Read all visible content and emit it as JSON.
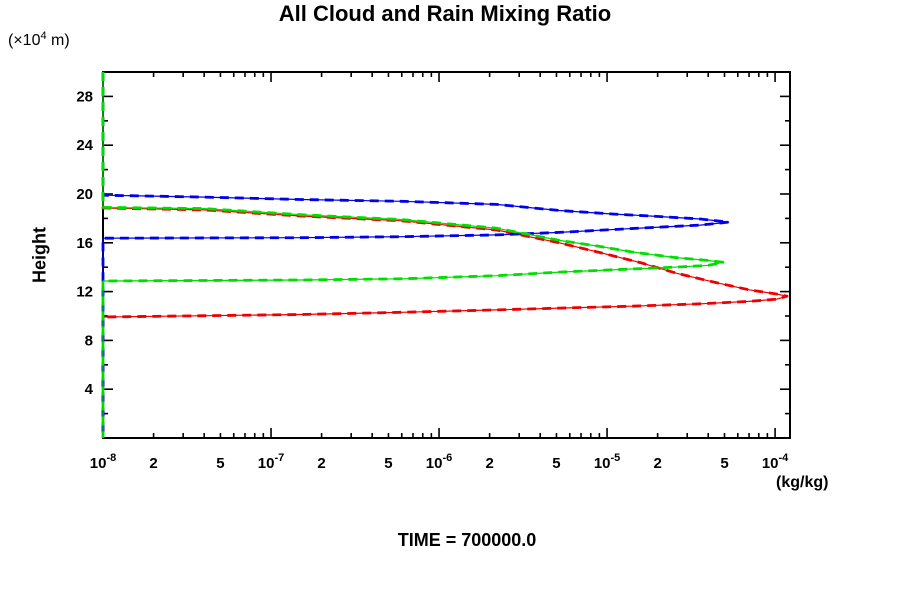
{
  "chart": {
    "title": "All Cloud and Rain Mixing Ratio",
    "y_axis_unit": {
      "prefix": "(×10",
      "sup": "4",
      "suffix": " m)"
    },
    "ylabel": "Height",
    "x_axis_unit": "(kg/kg)",
    "caption": "TIME = 700000.0"
  },
  "chart_data": {
    "type": "line",
    "title": "All Cloud and Rain Mixing Ratio",
    "xlabel": "(kg/kg)",
    "ylabel": "Height (×10^4 m)",
    "caption": "TIME = 700000.0",
    "x_scale": "log",
    "xlim": [
      1e-08,
      0.0001227
    ],
    "ylim": [
      0,
      30
    ],
    "grid": false,
    "legend": "none",
    "x_major_ticks": [
      1e-08,
      1e-07,
      1e-06,
      1e-05,
      0.0001
    ],
    "x_minor_multiples": [
      2,
      3,
      4,
      5,
      6,
      7,
      8,
      9
    ],
    "x_tick_labels": [
      {
        "value": 1e-08,
        "base": "10",
        "sup": "-8"
      },
      {
        "value": 2e-08,
        "base": "2"
      },
      {
        "value": 5e-08,
        "base": "5"
      },
      {
        "value": 1e-07,
        "base": "10",
        "sup": "-7"
      },
      {
        "value": 2e-07,
        "base": "2"
      },
      {
        "value": 5e-07,
        "base": "5"
      },
      {
        "value": 1e-06,
        "base": "10",
        "sup": "-6"
      },
      {
        "value": 2e-06,
        "base": "2"
      },
      {
        "value": 5e-06,
        "base": "5"
      },
      {
        "value": 1e-05,
        "base": "10",
        "sup": "-5"
      },
      {
        "value": 2e-05,
        "base": "2"
      },
      {
        "value": 5e-05,
        "base": "5"
      },
      {
        "value": 0.0001,
        "base": "10",
        "sup": "-4"
      }
    ],
    "y_major_ticks": [
      4,
      8,
      12,
      16,
      20,
      24,
      28
    ],
    "y_minor_step": 2,
    "series": [
      {
        "name": "red",
        "color": "#ee0000",
        "points_value_height": [
          [
            1e-08,
            30
          ],
          [
            1e-08,
            18.85
          ],
          [
            4e-08,
            18.7
          ],
          [
            1.5e-07,
            18.2
          ],
          [
            6e-07,
            17.8
          ],
          [
            2.2e-06,
            17.05
          ],
          [
            5.2e-06,
            16.0
          ],
          [
            9.1e-06,
            15.2
          ],
          [
            1.6e-05,
            14.35
          ],
          [
            2.6e-05,
            13.5
          ],
          [
            4.4e-05,
            12.75
          ],
          [
            7e-05,
            12.15
          ],
          [
            0.000102,
            11.8
          ],
          [
            0.000118,
            11.62
          ],
          [
            0.000102,
            11.38
          ],
          [
            7e-05,
            11.2
          ],
          [
            3.6e-05,
            11.0
          ],
          [
            1.4e-05,
            10.8
          ],
          [
            5.2e-06,
            10.65
          ],
          [
            2.2e-06,
            10.5
          ],
          [
            6e-07,
            10.3
          ],
          [
            1.5e-07,
            10.12
          ],
          [
            1e-08,
            9.92
          ],
          [
            1e-08,
            0
          ]
        ]
      },
      {
        "name": "blue",
        "color": "#0000ee",
        "points_value_height": [
          [
            1e-08,
            30
          ],
          [
            1e-08,
            19.9
          ],
          [
            4e-08,
            19.75
          ],
          [
            1.5e-07,
            19.55
          ],
          [
            6e-07,
            19.4
          ],
          [
            2.2e-06,
            19.15
          ],
          [
            5.2e-06,
            18.65
          ],
          [
            1.1e-05,
            18.35
          ],
          [
            1.8e-05,
            18.2
          ],
          [
            3.6e-05,
            17.95
          ],
          [
            5.3e-05,
            17.7
          ],
          [
            3.6e-05,
            17.45
          ],
          [
            1.8e-05,
            17.25
          ],
          [
            5.2e-06,
            16.85
          ],
          [
            2.2e-06,
            16.65
          ],
          [
            5.9e-07,
            16.5
          ],
          [
            1.5e-07,
            16.42
          ],
          [
            1e-08,
            16.38
          ],
          [
            1e-08,
            0
          ]
        ]
      },
      {
        "name": "green",
        "color": "#00dd00",
        "points_value_height": [
          [
            1e-08,
            30
          ],
          [
            1e-08,
            18.9
          ],
          [
            4e-08,
            18.8
          ],
          [
            1.5e-07,
            18.3
          ],
          [
            6e-07,
            17.9
          ],
          [
            2.2e-06,
            17.2
          ],
          [
            5.2e-06,
            16.2
          ],
          [
            9.1e-06,
            15.7
          ],
          [
            1.4e-05,
            15.25
          ],
          [
            2.5e-05,
            14.8
          ],
          [
            4e-05,
            14.55
          ],
          [
            4.9e-05,
            14.4
          ],
          [
            4e-05,
            14.15
          ],
          [
            2.5e-05,
            14.0
          ],
          [
            1.4e-05,
            13.85
          ],
          [
            5.2e-06,
            13.6
          ],
          [
            2.2e-06,
            13.3
          ],
          [
            6e-07,
            13.05
          ],
          [
            1.5e-07,
            12.95
          ],
          [
            1e-08,
            12.87
          ],
          [
            1e-08,
            0
          ]
        ]
      }
    ]
  }
}
